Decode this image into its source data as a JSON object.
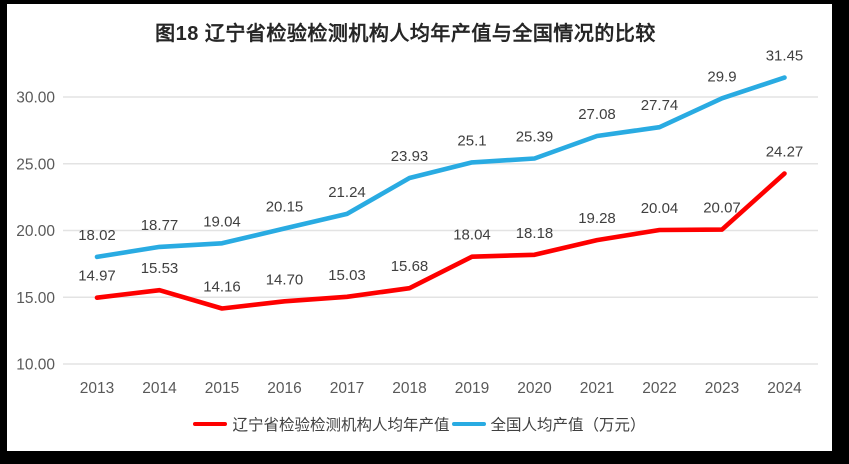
{
  "window": {
    "frame_color": "#000000",
    "background_color": "#ffffff"
  },
  "chart_data": {
    "type": "line",
    "title": "图18 辽宁省检验检测机构人均年产值与全国情况的比较",
    "categories": [
      "2013",
      "2014",
      "2015",
      "2016",
      "2017",
      "2018",
      "2019",
      "2020",
      "2021",
      "2022",
      "2023",
      "2024"
    ],
    "series": [
      {
        "name": "辽宁省检验检测机构人均年产值",
        "color": "#fe0000",
        "values": [
          14.97,
          15.53,
          14.16,
          14.7,
          15.03,
          15.68,
          18.04,
          18.18,
          19.28,
          20.04,
          20.07,
          24.27
        ],
        "labels": [
          "14.97",
          "15.53",
          "14.16",
          "14.70",
          "15.03",
          "15.68",
          "18.04",
          "18.18",
          "19.28",
          "20.04",
          "20.07",
          "24.27"
        ]
      },
      {
        "name": "全国人均产值（万元）",
        "color": "#29abe2",
        "values": [
          18.02,
          18.77,
          19.04,
          20.15,
          21.24,
          23.93,
          25.1,
          25.39,
          27.08,
          27.74,
          29.9,
          31.45
        ],
        "labels": [
          "18.02",
          "18.77",
          "19.04",
          "20.15",
          "21.24",
          "23.93",
          "25.1",
          "25.39",
          "27.08",
          "27.74",
          "29.9",
          "31.45"
        ]
      }
    ],
    "xlabel": "",
    "ylabel": "",
    "y_axis": {
      "min": 10,
      "max": 32.5,
      "tick_step": 5,
      "ticks": [
        10,
        15,
        20,
        25,
        30
      ],
      "tick_labels": [
        "10.00",
        "15.00",
        "20.00",
        "25.00",
        "30.00"
      ]
    },
    "grid": true,
    "legend_position": "bottom",
    "colors": {
      "gridline": "#e3e3e3",
      "tick_text": "#595959",
      "data_label_text": "#404040",
      "title_text": "#262626"
    }
  }
}
